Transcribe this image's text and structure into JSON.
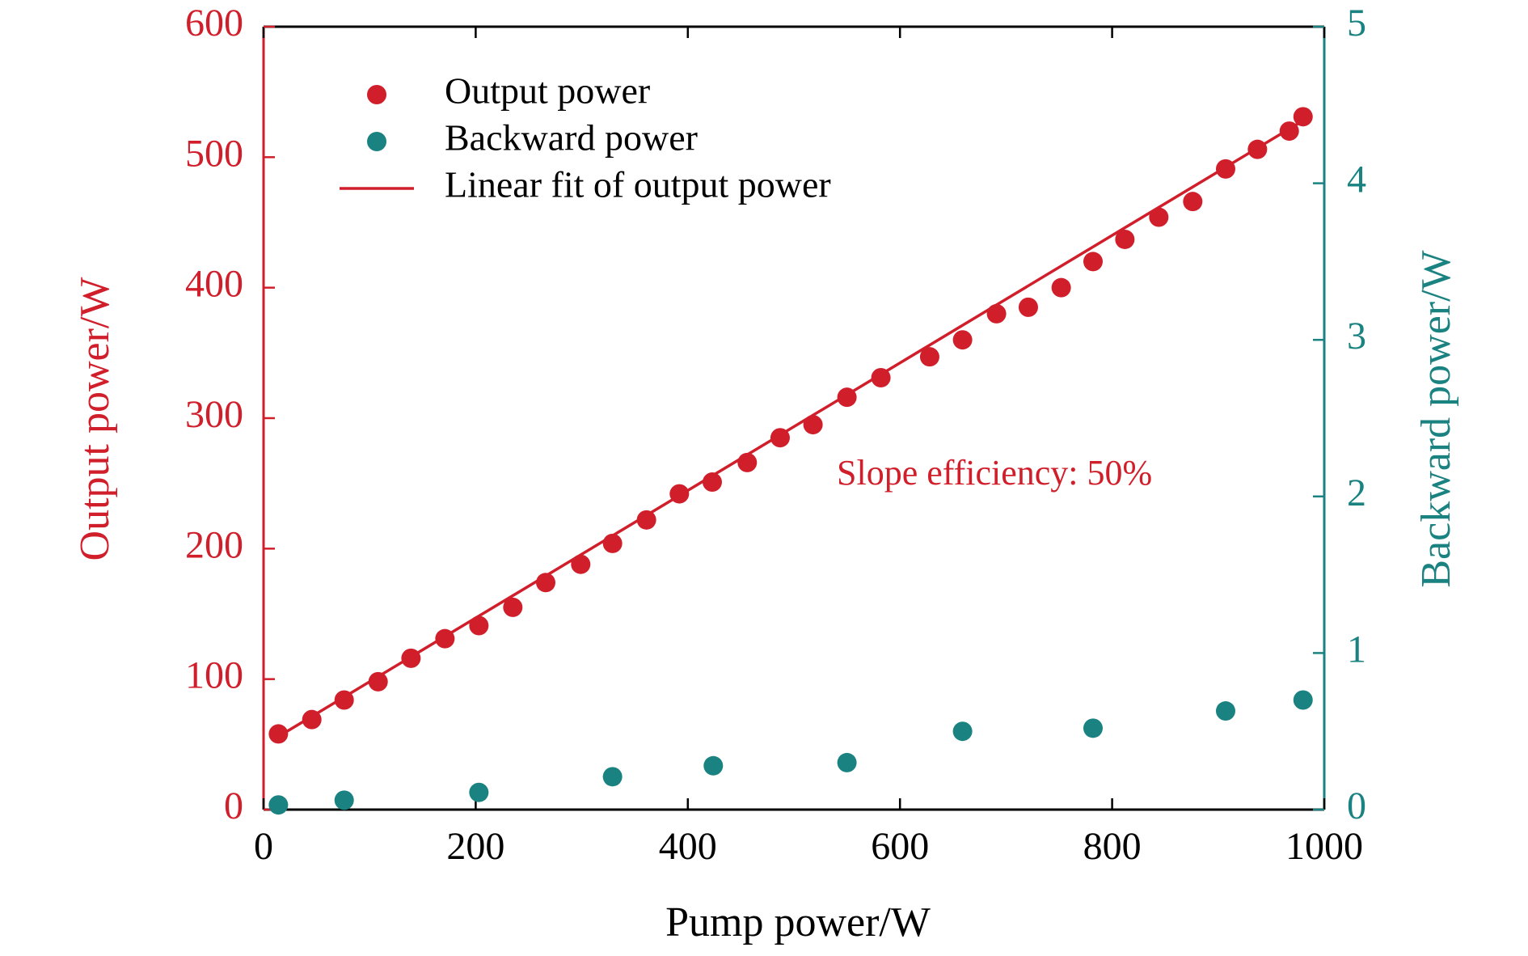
{
  "chart_data": {
    "type": "scatter",
    "xlabel": "Pump power/W",
    "ylabel": "Output power/W",
    "y2label": "Backward power/W",
    "annotation": "Slope efficiency: 50%",
    "xlim": [
      0,
      1000
    ],
    "xticks": [
      0,
      200,
      400,
      600,
      800,
      1000
    ],
    "ylim": [
      0,
      600
    ],
    "yticks": [
      0,
      100,
      200,
      300,
      400,
      500,
      600
    ],
    "y2lim": [
      0,
      5
    ],
    "y2ticks": [
      0,
      1,
      2,
      3,
      4,
      5
    ],
    "ycolor": "#d01f2b",
    "y2color": "#1b8282",
    "legend": "upper left",
    "series": [
      {
        "name": "Output power",
        "color": "#d01f2b",
        "mode": "markers",
        "x": [
          14,
          45.5,
          76,
          108,
          139,
          171,
          203,
          235,
          266,
          299,
          329,
          361,
          392,
          423,
          456,
          487,
          518,
          550,
          582,
          628,
          659,
          691,
          721,
          752,
          782,
          812,
          844,
          876,
          907,
          937,
          967,
          980
        ],
        "values": [
          58,
          69,
          84,
          98,
          116,
          131,
          141,
          155,
          174,
          188,
          204,
          222,
          242,
          251,
          266,
          285,
          295,
          316,
          331,
          347,
          360,
          380,
          385,
          400,
          420,
          437,
          454,
          466,
          491,
          506,
          520,
          531
        ]
      },
      {
        "name": "Backward power",
        "color": "#1b8282",
        "mode": "markers",
        "axis": "y2",
        "x": [
          14,
          76,
          203,
          329,
          424,
          550,
          659,
          782,
          907,
          980
        ],
        "values": [
          0.03,
          0.06,
          0.11,
          0.21,
          0.28,
          0.3,
          0.5,
          0.52,
          0.63,
          0.7
        ]
      },
      {
        "name": "Linear fit of output power",
        "color": "#d01f2b",
        "mode": "line",
        "x": [
          14,
          980
        ],
        "values": [
          56,
          528
        ]
      }
    ]
  }
}
